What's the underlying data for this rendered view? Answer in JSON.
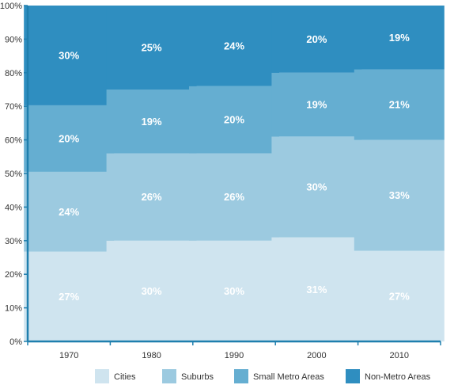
{
  "chart_data": {
    "type": "bar",
    "stacked": true,
    "title": "",
    "xlabel": "",
    "ylabel": "",
    "ylim": [
      0,
      100
    ],
    "grid": false,
    "legend_position": "bottom",
    "categories": [
      "1970",
      "1980",
      "1990",
      "2000",
      "2010"
    ],
    "y_ticks": [
      "0%",
      "10%",
      "20%",
      "30%",
      "40%",
      "50%",
      "60%",
      "70%",
      "80%",
      "90%",
      "100%"
    ],
    "series": [
      {
        "name": "Cities",
        "values": [
          27,
          30,
          30,
          31,
          27
        ],
        "labels": [
          "27%",
          "30%",
          "30%",
          "31%",
          "27%"
        ],
        "color": "#cfe4ef"
      },
      {
        "name": "Suburbs",
        "values": [
          24,
          26,
          26,
          30,
          33
        ],
        "labels": [
          "24%",
          "26%",
          "26%",
          "30%",
          "33%"
        ],
        "color": "#9ccae0"
      },
      {
        "name": "Small Metro Areas",
        "values": [
          20,
          19,
          20,
          19,
          21
        ],
        "labels": [
          "20%",
          "19%",
          "20%",
          "19%",
          "21%"
        ],
        "color": "#65aed1"
      },
      {
        "name": "Non-Metro Areas",
        "values": [
          30,
          25,
          24,
          20,
          19
        ],
        "labels": [
          "30%",
          "25%",
          "24%",
          "20%",
          "19%"
        ],
        "color": "#2f8ec0"
      }
    ],
    "axis_color": "#1f7fae"
  }
}
